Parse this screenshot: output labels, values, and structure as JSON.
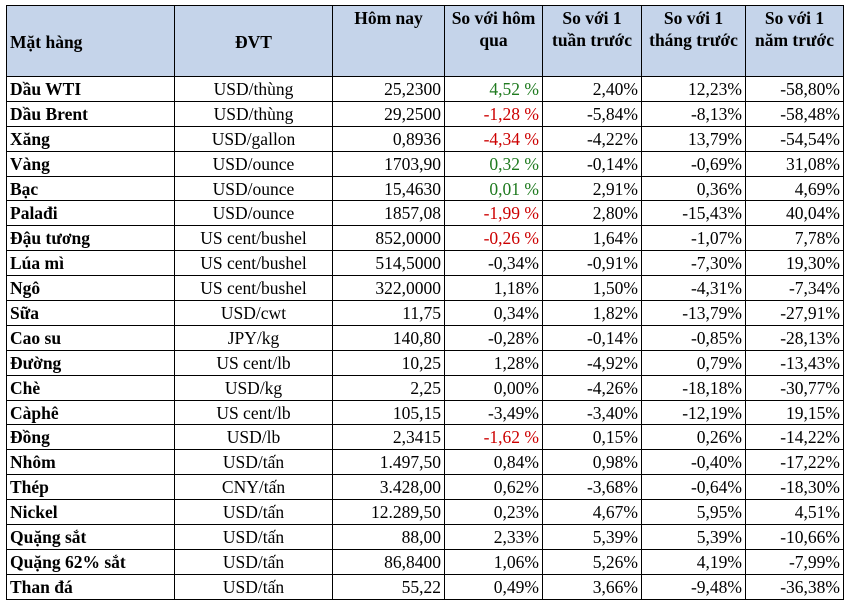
{
  "headers": {
    "item": "Mặt hàng",
    "unit": "ĐVT",
    "today": "Hôm nay",
    "vs_yesterday": "So với hôm qua",
    "vs_week": "So với 1 tuần trước",
    "vs_month": "So với 1 tháng trước",
    "vs_year": "So với 1 năm trước"
  },
  "colors": {
    "header_bg": "#c5d4ea",
    "up": "#1f7a1f",
    "down": "#cc0000",
    "neutral": "#000000"
  },
  "rows": [
    {
      "item": "Dầu WTI",
      "unit": "USD/thùng",
      "today": "25,2300",
      "d1": "4,52 %",
      "d1_color": "up",
      "w1": "2,40%",
      "m1": "12,23%",
      "y1": "-58,80%"
    },
    {
      "item": "Dầu Brent",
      "unit": "USD/thùng",
      "today": "29,2500",
      "d1": "-1,28 %",
      "d1_color": "down",
      "w1": "-5,84%",
      "m1": "-8,13%",
      "y1": "-58,48%"
    },
    {
      "item": "Xăng",
      "unit": "USD/gallon",
      "today": "0,8936",
      "d1": "-4,34 %",
      "d1_color": "down",
      "w1": "-4,22%",
      "m1": "13,79%",
      "y1": "-54,54%"
    },
    {
      "item": "Vàng",
      "unit": "USD/ounce",
      "today": "1703,90",
      "d1": "0,32 %",
      "d1_color": "up",
      "w1": "-0,14%",
      "m1": "-0,69%",
      "y1": "31,08%"
    },
    {
      "item": "Bạc",
      "unit": "USD/ounce",
      "today": "15,4630",
      "d1": "0,01 %",
      "d1_color": "up",
      "w1": "2,91%",
      "m1": "0,36%",
      "y1": "4,69%"
    },
    {
      "item": "Palađi",
      "unit": "USD/ounce",
      "today": "1857,08",
      "d1": "-1,99 %",
      "d1_color": "down",
      "w1": "2,80%",
      "m1": "-15,43%",
      "y1": "40,04%"
    },
    {
      "item": "Đậu tương",
      "unit": "US cent/bushel",
      "today": "852,0000",
      "d1": "-0,26 %",
      "d1_color": "down",
      "w1": "1,64%",
      "m1": "-1,07%",
      "y1": "7,78%"
    },
    {
      "item": "Lúa mì",
      "unit": "US cent/bushel",
      "today": "514,5000",
      "d1": "-0,34%",
      "d1_color": "neutral",
      "w1": "-0,91%",
      "m1": "-7,30%",
      "y1": "19,30%"
    },
    {
      "item": "Ngô",
      "unit": "US cent/bushel",
      "today": "322,0000",
      "d1": "1,18%",
      "d1_color": "neutral",
      "w1": "1,50%",
      "m1": "-4,31%",
      "y1": "-7,34%"
    },
    {
      "item": "Sữa",
      "unit": "USD/cwt",
      "today": "11,75",
      "d1": "0,34%",
      "d1_color": "neutral",
      "w1": "1,82%",
      "m1": "-13,79%",
      "y1": "-27,91%"
    },
    {
      "item": "Cao su",
      "unit": "JPY/kg",
      "today": "140,80",
      "d1": "-0,28%",
      "d1_color": "neutral",
      "w1": "-0,14%",
      "m1": "-0,85%",
      "y1": "-28,13%"
    },
    {
      "item": "Đường",
      "unit": "US cent/lb",
      "today": "10,25",
      "d1": "1,28%",
      "d1_color": "neutral",
      "w1": "-4,92%",
      "m1": "0,79%",
      "y1": "-13,43%"
    },
    {
      "item": "Chè",
      "unit": "USD/kg",
      "today": "2,25",
      "d1": "0,00%",
      "d1_color": "neutral",
      "w1": "-4,26%",
      "m1": "-18,18%",
      "y1": "-30,77%"
    },
    {
      "item": "Càphê",
      "unit": "US cent/lb",
      "today": "105,15",
      "d1": "-3,49%",
      "d1_color": "neutral",
      "w1": "-3,40%",
      "m1": "-12,19%",
      "y1": "19,15%"
    },
    {
      "item": "Đồng",
      "unit": "USD/lb",
      "today": "2,3415",
      "d1": "-1,62 %",
      "d1_color": "down",
      "w1": "0,15%",
      "m1": "0,26%",
      "y1": "-14,22%"
    },
    {
      "item": "Nhôm",
      "unit": "USD/tấn",
      "today": "1.497,50",
      "d1": "0,84%",
      "d1_color": "neutral",
      "w1": "0,98%",
      "m1": "-0,40%",
      "y1": "-17,22%"
    },
    {
      "item": "Thép",
      "unit": "CNY/tấn",
      "today": "3.428,00",
      "d1": "0,62%",
      "d1_color": "neutral",
      "w1": "-3,68%",
      "m1": "-0,64%",
      "y1": "-18,30%"
    },
    {
      "item": "Nickel",
      "unit": "USD/tấn",
      "today": "12.289,50",
      "d1": "0,23%",
      "d1_color": "neutral",
      "w1": "4,67%",
      "m1": "5,95%",
      "y1": "4,51%"
    },
    {
      "item": "Quặng sắt",
      "unit": "USD/tấn",
      "today": "88,00",
      "d1": "2,33%",
      "d1_color": "neutral",
      "w1": "5,39%",
      "m1": "5,39%",
      "y1": "-10,66%"
    },
    {
      "item": "Quặng 62% sắt",
      "unit": "USD/tấn",
      "today": "86,8400",
      "d1": "1,06%",
      "d1_color": "neutral",
      "w1": "5,26%",
      "m1": "4,19%",
      "y1": "-7,99%"
    },
    {
      "item": "Than đá",
      "unit": "USD/tấn",
      "today": "55,22",
      "d1": "0,49%",
      "d1_color": "neutral",
      "w1": "3,66%",
      "m1": "-9,48%",
      "y1": "-36,38%"
    }
  ]
}
